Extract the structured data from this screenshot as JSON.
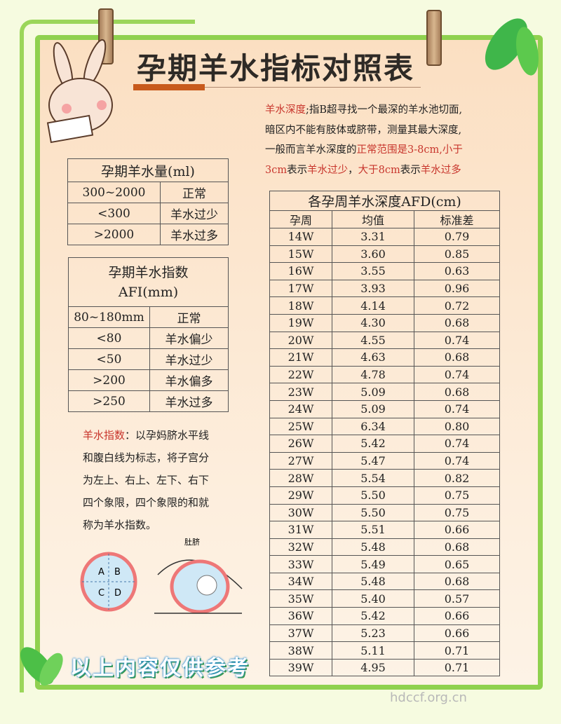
{
  "title": "孕期羊水指标对照表",
  "depth_para": {
    "l1_red": "羊水深度",
    "l1": ";指B超寻找一个最深的羊水池切面,",
    "l2": "暗区内不能有肢体或脐带，测量其最大深度,",
    "l3": "一般而言羊水深度的",
    "l3_red": "正常范围是3-8cm,小于",
    "l4a_red": "3cm",
    "l4b": "表示",
    "l4c_red": "羊水过少",
    "l4d": "，",
    "l4e_red": "大于8cm",
    "l4f": "表示",
    "l4g_red": "羊水过多"
  },
  "volume_table": {
    "title": "孕期羊水量(ml)",
    "rows": [
      [
        "300~2000",
        "正常"
      ],
      [
        "<300",
        "羊水过少"
      ],
      [
        ">2000",
        "羊水过多"
      ]
    ]
  },
  "afi_table": {
    "title1": "孕期羊水指数",
    "title2": "AFI(mm)",
    "rows": [
      [
        "80~180mm",
        "正常"
      ],
      [
        "<80",
        "羊水偏少"
      ],
      [
        "<50",
        "羊水过少"
      ],
      [
        ">200",
        "羊水偏多"
      ],
      [
        ">250",
        "羊水过多"
      ]
    ]
  },
  "afi_para": {
    "red": "羊水指数",
    "l1": "：以孕妈脐水平线",
    "l2": "和腹白线为标志，将子宫分",
    "l3": "为左上、右上、左下、右下",
    "l4": "四个象限，四个象限的和就",
    "l5": "称为羊水指数。"
  },
  "diagram": {
    "quadrants": [
      "A",
      "B",
      "C",
      "D"
    ],
    "navel_label": "肚脐"
  },
  "afd_table": {
    "title": "各孕周羊水深度AFD(cm)",
    "headers": [
      "孕周",
      "均值",
      "标准差"
    ],
    "rows": [
      [
        "14W",
        "3.31",
        "0.79"
      ],
      [
        "15W",
        "3.60",
        "0.85"
      ],
      [
        "16W",
        "3.55",
        "0.63"
      ],
      [
        "17W",
        "3.93",
        "0.96"
      ],
      [
        "18W",
        "4.14",
        "0.72"
      ],
      [
        "19W",
        "4.30",
        "0.68"
      ],
      [
        "20W",
        "4.55",
        "0.74"
      ],
      [
        "21W",
        "4.63",
        "0.68"
      ],
      [
        "22W",
        "4.78",
        "0.74"
      ],
      [
        "23W",
        "5.09",
        "0.68"
      ],
      [
        "24W",
        "5.09",
        "0.74"
      ],
      [
        "25W",
        "6.34",
        "0.80"
      ],
      [
        "26W",
        "5.42",
        "0.74"
      ],
      [
        "27W",
        "5.47",
        "0.74"
      ],
      [
        "28W",
        "5.54",
        "0.82"
      ],
      [
        "29W",
        "5.50",
        "0.75"
      ],
      [
        "30W",
        "5.50",
        "0.75"
      ],
      [
        "31W",
        "5.51",
        "0.66"
      ],
      [
        "32W",
        "5.48",
        "0.68"
      ],
      [
        "33W",
        "5.49",
        "0.65"
      ],
      [
        "34W",
        "5.48",
        "0.68"
      ],
      [
        "35W",
        "5.40",
        "0.57"
      ],
      [
        "36W",
        "5.42",
        "0.66"
      ],
      [
        "37W",
        "5.23",
        "0.66"
      ],
      [
        "38W",
        "5.11",
        "0.71"
      ],
      [
        "39W",
        "4.95",
        "0.71"
      ]
    ]
  },
  "footer": "以上内容仅供参考",
  "watermark": "hdccf.org.cn",
  "colors": {
    "frame": "#8fd14f",
    "panel": "#fbdfc2",
    "accent_red": "#c8352c",
    "title_bar": "#c85a1c"
  }
}
